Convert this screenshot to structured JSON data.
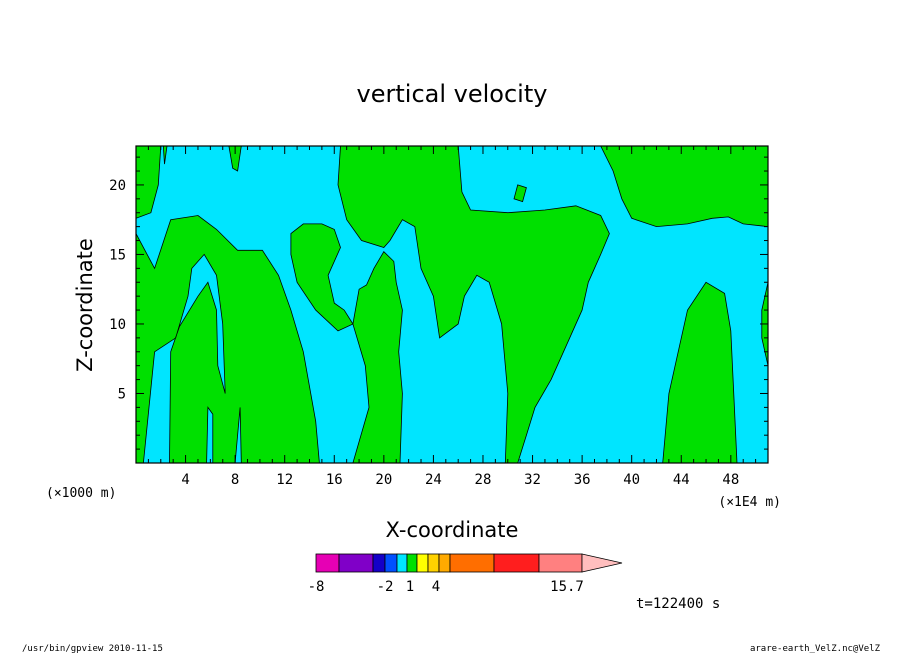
{
  "chart_data": {
    "type": "heatmap",
    "title": "vertical velocity",
    "xlabel": "X-coordinate",
    "ylabel": "Z-coordinate",
    "x_unit_left": "(×1000 m)",
    "x_unit_right": "(×1E4 m)",
    "xlim": [
      0,
      51
    ],
    "ylim": [
      0,
      22.8
    ],
    "xticks": [
      "4",
      "8",
      "12",
      "16",
      "20",
      "24",
      "28",
      "32",
      "36",
      "40",
      "44",
      "48"
    ],
    "xtick_values": [
      4,
      8,
      12,
      16,
      20,
      24,
      28,
      32,
      36,
      40,
      44,
      48
    ],
    "yticks": [
      "5",
      "10",
      "15",
      "20"
    ],
    "ytick_values": [
      5,
      10,
      15,
      20
    ],
    "background_color": "#00e5ff",
    "region_color": "#00e000",
    "time_label": "t=122400 s",
    "colorbar": {
      "colors": [
        "#e600b4",
        "#8000c8",
        "#1400c8",
        "#0050ff",
        "#00e5ff",
        "#00e000",
        "#ffff00",
        "#ffd200",
        "#ffaa00",
        "#ff6e00",
        "#ff1e1e",
        "#ff8080",
        "#ffbebe"
      ],
      "labels": [
        "-8",
        "-2",
        "1",
        "4",
        "15.7"
      ],
      "label_values": [
        -8,
        -2,
        1,
        4,
        15.7
      ]
    },
    "regions": [
      {
        "name": "top-left",
        "points": [
          [
            0,
            22.8
          ],
          [
            2.2,
            22.8
          ],
          [
            2.3,
            21.5
          ],
          [
            2.5,
            22.8
          ],
          [
            0,
            22.8
          ]
        ]
      },
      {
        "name": "left-cell",
        "points": [
          [
            0,
            17.6
          ],
          [
            1.2,
            18
          ],
          [
            1.8,
            20
          ],
          [
            2,
            22.8
          ],
          [
            0,
            22.8
          ]
        ]
      },
      {
        "name": "column-a",
        "points": [
          [
            0,
            16.5
          ],
          [
            1.5,
            14
          ],
          [
            2.8,
            17.5
          ],
          [
            5,
            17.8
          ],
          [
            6.5,
            16.8
          ],
          [
            8.2,
            15.3
          ],
          [
            10.2,
            15.3
          ],
          [
            11.5,
            13.5
          ],
          [
            12.5,
            11
          ],
          [
            13.5,
            8
          ],
          [
            14.5,
            3
          ],
          [
            14.8,
            0
          ],
          [
            8.5,
            0
          ],
          [
            8.4,
            4
          ],
          [
            8,
            0
          ],
          [
            6.2,
            0
          ],
          [
            6.2,
            3.5
          ],
          [
            5.8,
            4
          ],
          [
            5.7,
            0
          ],
          [
            2.7,
            0
          ],
          [
            2.8,
            8
          ],
          [
            3.5,
            9.8
          ],
          [
            5,
            12
          ],
          [
            5.8,
            13
          ],
          [
            6.5,
            11
          ],
          [
            6.6,
            7
          ],
          [
            7.2,
            5
          ],
          [
            7,
            10
          ],
          [
            6.5,
            13.5
          ],
          [
            5.5,
            15
          ],
          [
            4.5,
            14
          ],
          [
            4.2,
            12
          ],
          [
            3.2,
            9
          ],
          [
            1.5,
            8
          ],
          [
            0.6,
            0
          ],
          [
            0,
            0
          ]
        ]
      },
      {
        "name": "center-left",
        "points": [
          [
            12.5,
            16.5
          ],
          [
            13.5,
            17.2
          ],
          [
            15,
            17.2
          ],
          [
            16,
            16.8
          ],
          [
            16.5,
            15.5
          ],
          [
            15.5,
            13.5
          ],
          [
            16,
            11.5
          ],
          [
            16.8,
            11
          ],
          [
            17.5,
            10
          ],
          [
            18,
            12.5
          ],
          [
            18.6,
            12.8
          ],
          [
            19.2,
            14
          ],
          [
            20,
            15.2
          ],
          [
            20.8,
            14.5
          ],
          [
            21,
            13
          ],
          [
            21.5,
            11
          ],
          [
            21.2,
            8
          ],
          [
            21.5,
            5
          ],
          [
            21.3,
            0
          ],
          [
            17.5,
            0
          ],
          [
            18.8,
            4
          ],
          [
            18.5,
            7
          ],
          [
            17.5,
            10
          ],
          [
            16.3,
            9.5
          ],
          [
            14.5,
            11
          ],
          [
            13,
            13
          ],
          [
            12.5,
            15
          ]
        ]
      },
      {
        "name": "center-tower",
        "points": [
          [
            16.5,
            22.8
          ],
          [
            26,
            22.8
          ],
          [
            26.3,
            19.5
          ],
          [
            27,
            18.2
          ],
          [
            30,
            18
          ],
          [
            33,
            18.2
          ],
          [
            35.5,
            18.5
          ],
          [
            37.5,
            17.8
          ],
          [
            38.2,
            16.5
          ],
          [
            37.5,
            15
          ],
          [
            36.5,
            13
          ],
          [
            36,
            11
          ],
          [
            35,
            9
          ],
          [
            33.5,
            6
          ],
          [
            32.2,
            4
          ],
          [
            31.5,
            2
          ],
          [
            30.8,
            0
          ],
          [
            29.8,
            0
          ],
          [
            30,
            5
          ],
          [
            29.5,
            10
          ],
          [
            28.5,
            13
          ],
          [
            27.5,
            13.5
          ],
          [
            26.5,
            12
          ],
          [
            26,
            10
          ],
          [
            24.5,
            9
          ],
          [
            24,
            12
          ],
          [
            23,
            14
          ],
          [
            22.5,
            17
          ],
          [
            21.5,
            17.5
          ],
          [
            20.5,
            16
          ],
          [
            20,
            15.5
          ],
          [
            18.2,
            16
          ],
          [
            17,
            17.5
          ],
          [
            16.3,
            20
          ]
        ]
      },
      {
        "name": "right-top",
        "points": [
          [
            37.5,
            22.8
          ],
          [
            51,
            22.8
          ],
          [
            51,
            17
          ],
          [
            49,
            17.2
          ],
          [
            47.8,
            17.7
          ],
          [
            46.5,
            17.6
          ],
          [
            44.5,
            17.2
          ],
          [
            42,
            17
          ],
          [
            40,
            17.6
          ],
          [
            39.2,
            19
          ],
          [
            38.5,
            21
          ]
        ]
      },
      {
        "name": "right-tower",
        "points": [
          [
            42.5,
            0
          ],
          [
            43,
            5
          ],
          [
            43.5,
            7
          ],
          [
            44.5,
            11
          ],
          [
            46,
            13
          ],
          [
            47.5,
            12.2
          ],
          [
            48,
            9.5
          ],
          [
            48.5,
            0
          ]
        ]
      },
      {
        "name": "right-edge",
        "points": [
          [
            50.5,
            11
          ],
          [
            51,
            13
          ],
          [
            51,
            7
          ],
          [
            50.5,
            9
          ]
        ]
      },
      {
        "name": "small-blob",
        "points": [
          [
            30.5,
            19
          ],
          [
            30.8,
            20
          ],
          [
            31.5,
            19.8
          ],
          [
            31.2,
            18.8
          ]
        ]
      },
      {
        "name": "upper-blob",
        "points": [
          [
            7.5,
            22.8
          ],
          [
            8.5,
            22.8
          ],
          [
            8.2,
            21
          ],
          [
            7.8,
            21.2
          ]
        ]
      }
    ]
  },
  "footer": {
    "left": "/usr/bin/gpview   2010-11-15",
    "right": "arare-earth_VelZ.nc@VelZ"
  }
}
